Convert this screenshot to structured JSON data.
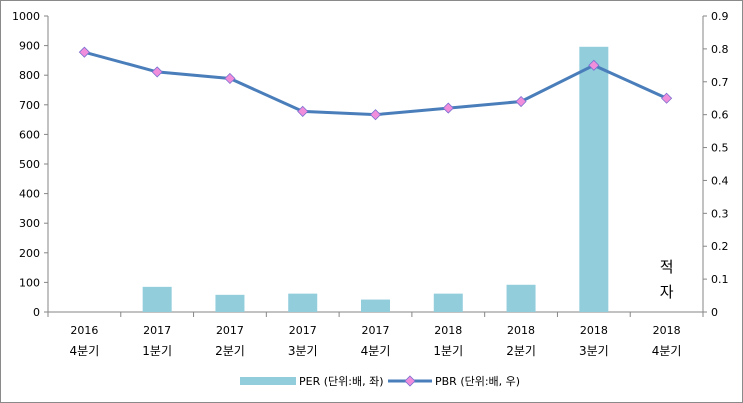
{
  "chart_data": {
    "type": "bar+line",
    "categories": [
      [
        "2016",
        "4분기"
      ],
      [
        "2017",
        "1분기"
      ],
      [
        "2017",
        "2분기"
      ],
      [
        "2017",
        "3분기"
      ],
      [
        "2017",
        "4분기"
      ],
      [
        "2018",
        "1분기"
      ],
      [
        "2018",
        "2분기"
      ],
      [
        "2018",
        "3분기"
      ],
      [
        "2018",
        "4분기"
      ]
    ],
    "left_axis": {
      "min": 0,
      "max": 1000,
      "step": 100,
      "ticks": [
        "0",
        "100",
        "200",
        "300",
        "400",
        "500",
        "600",
        "700",
        "800",
        "900",
        "1000"
      ]
    },
    "right_axis": {
      "min": 0,
      "max": 0.9,
      "step": 0.1,
      "ticks": [
        "0",
        "0.1",
        "0.2",
        "0.3",
        "0.4",
        "0.5",
        "0.6",
        "0.7",
        "0.8",
        "0.9"
      ]
    },
    "series": [
      {
        "name": "PER (단위:배, 좌)",
        "type": "bar",
        "axis": "left",
        "color": "#92CDDC",
        "values": [
          null,
          85,
          58,
          62,
          42,
          62,
          92,
          896,
          null
        ]
      },
      {
        "name": "PBR (단위:배, 우)",
        "type": "line",
        "axis": "right",
        "color": "#4A7EBB",
        "marker_color": "#F08EDC",
        "values": [
          0.79,
          0.73,
          0.71,
          0.61,
          0.6,
          0.62,
          0.64,
          0.75,
          0.65
        ]
      }
    ],
    "annotations": [
      {
        "category_index": 8,
        "text": [
          "적",
          "자"
        ]
      }
    ],
    "legend": "bottom"
  }
}
